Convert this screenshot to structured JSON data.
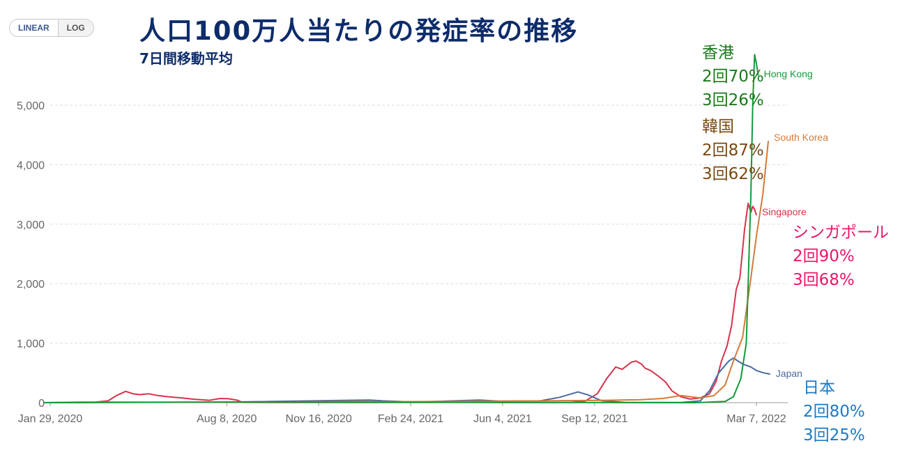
{
  "toggle": {
    "linear_label": "LINEAR",
    "log_label": "LOG",
    "active": "linear"
  },
  "header": {
    "title": "人口100万人当たりの発症率の推移",
    "subtitle": "7日間移動平均"
  },
  "annotations": {
    "hong_kong": {
      "name": "香港",
      "dose2": "2回70%",
      "dose3": "3回26%",
      "color": "#1a7a1a"
    },
    "south_korea": {
      "name": "韓国",
      "dose2": "2回87%",
      "dose3": "3回62%",
      "color": "#7a4a12"
    },
    "singapore": {
      "name": "シンガポール",
      "dose2": "2回90%",
      "dose3": "3回68%",
      "color": "#e8176b"
    },
    "japan": {
      "name": "日本",
      "dose2": "2回80%",
      "dose3": "3回25%",
      "color": "#1a7ac8"
    }
  },
  "chart_data": {
    "type": "line",
    "ylim": [
      0,
      5000
    ],
    "y_ticks": [
      0,
      1000,
      2000,
      3000,
      4000,
      5000
    ],
    "y_tick_labels": [
      "0",
      "1,000",
      "2,000",
      "3,000",
      "4,000",
      "5,000"
    ],
    "x_range": [
      "2020-01-22",
      "2022-03-30"
    ],
    "x_ticks": [
      "2020-01-29",
      "2020-08-08",
      "2020-11-16",
      "2021-02-24",
      "2021-06-04",
      "2021-09-12",
      "2022-03-07"
    ],
    "x_tick_labels": [
      "Jan 29, 2020",
      "Aug 8, 2020",
      "Nov 16, 2020",
      "Feb 24, 2021",
      "Jun 4, 2021",
      "Sep 12, 2021",
      "Mar 7, 2022"
    ],
    "grid": true,
    "series": [
      {
        "name": "Singapore",
        "color": "#d6334a",
        "points": [
          [
            "2020-01-22",
            0
          ],
          [
            "2020-03-15",
            5
          ],
          [
            "2020-04-01",
            30
          ],
          [
            "2020-04-10",
            120
          ],
          [
            "2020-04-20",
            190
          ],
          [
            "2020-04-28",
            150
          ],
          [
            "2020-05-05",
            135
          ],
          [
            "2020-05-15",
            150
          ],
          [
            "2020-05-25",
            120
          ],
          [
            "2020-06-05",
            100
          ],
          [
            "2020-06-20",
            80
          ],
          [
            "2020-07-05",
            55
          ],
          [
            "2020-07-20",
            40
          ],
          [
            "2020-08-01",
            70
          ],
          [
            "2020-08-10",
            65
          ],
          [
            "2020-08-20",
            40
          ],
          [
            "2020-08-25",
            5
          ],
          [
            "2020-09-15",
            2
          ],
          [
            "2021-01-01",
            2
          ],
          [
            "2021-05-01",
            5
          ],
          [
            "2021-06-01",
            3
          ],
          [
            "2021-08-15",
            3
          ],
          [
            "2021-09-01",
            20
          ],
          [
            "2021-09-15",
            150
          ],
          [
            "2021-09-25",
            400
          ],
          [
            "2021-10-05",
            600
          ],
          [
            "2021-10-12",
            560
          ],
          [
            "2021-10-22",
            680
          ],
          [
            "2021-10-27",
            700
          ],
          [
            "2021-11-02",
            650
          ],
          [
            "2021-11-06",
            580
          ],
          [
            "2021-11-12",
            540
          ],
          [
            "2021-11-20",
            450
          ],
          [
            "2021-11-28",
            350
          ],
          [
            "2021-12-05",
            200
          ],
          [
            "2021-12-15",
            100
          ],
          [
            "2021-12-25",
            60
          ],
          [
            "2022-01-05",
            80
          ],
          [
            "2022-01-15",
            150
          ],
          [
            "2022-01-22",
            350
          ],
          [
            "2022-01-28",
            700
          ],
          [
            "2022-02-03",
            950
          ],
          [
            "2022-02-08",
            1300
          ],
          [
            "2022-02-13",
            1900
          ],
          [
            "2022-02-17",
            2100
          ],
          [
            "2022-02-22",
            2900
          ],
          [
            "2022-02-26",
            3350
          ],
          [
            "2022-03-01",
            3200
          ],
          [
            "2022-03-03",
            3300
          ],
          [
            "2022-03-05",
            3250
          ],
          [
            "2022-03-07",
            3150
          ]
        ]
      },
      {
        "name": "Japan",
        "color": "#4c6a9c",
        "points": [
          [
            "2020-01-22",
            0
          ],
          [
            "2020-04-15",
            5
          ],
          [
            "2020-08-01",
            8
          ],
          [
            "2021-01-10",
            45
          ],
          [
            "2021-01-25",
            30
          ],
          [
            "2021-03-01",
            10
          ],
          [
            "2021-05-10",
            45
          ],
          [
            "2021-06-01",
            25
          ],
          [
            "2021-07-15",
            30
          ],
          [
            "2021-08-05",
            90
          ],
          [
            "2021-08-25",
            180
          ],
          [
            "2021-09-05",
            130
          ],
          [
            "2021-09-20",
            30
          ],
          [
            "2021-10-15",
            5
          ],
          [
            "2021-12-15",
            3
          ],
          [
            "2022-01-05",
            30
          ],
          [
            "2022-01-15",
            200
          ],
          [
            "2022-01-25",
            500
          ],
          [
            "2022-02-05",
            700
          ],
          [
            "2022-02-10",
            750
          ],
          [
            "2022-02-20",
            650
          ],
          [
            "2022-03-01",
            600
          ],
          [
            "2022-03-07",
            540
          ],
          [
            "2022-03-15",
            500
          ],
          [
            "2022-03-22",
            480
          ]
        ]
      },
      {
        "name": "South Korea",
        "color": "#d27a38",
        "points": [
          [
            "2020-01-22",
            0
          ],
          [
            "2020-03-01",
            10
          ],
          [
            "2020-09-01",
            5
          ],
          [
            "2020-12-25",
            20
          ],
          [
            "2021-01-20",
            15
          ],
          [
            "2021-07-20",
            30
          ],
          [
            "2021-09-25",
            40
          ],
          [
            "2021-11-01",
            50
          ],
          [
            "2021-11-25",
            70
          ],
          [
            "2021-12-15",
            120
          ],
          [
            "2022-01-05",
            80
          ],
          [
            "2022-01-20",
            120
          ],
          [
            "2022-02-01",
            300
          ],
          [
            "2022-02-10",
            700
          ],
          [
            "2022-02-20",
            1100
          ],
          [
            "2022-03-01",
            2100
          ],
          [
            "2022-03-07",
            2800
          ],
          [
            "2022-03-14",
            3500
          ],
          [
            "2022-03-20",
            4400
          ]
        ]
      },
      {
        "name": "Hong Kong",
        "color": "#149a3a",
        "points": [
          [
            "2020-01-22",
            0
          ],
          [
            "2020-08-01",
            10
          ],
          [
            "2021-12-31",
            0
          ],
          [
            "2022-02-01",
            20
          ],
          [
            "2022-02-10",
            100
          ],
          [
            "2022-02-18",
            400
          ],
          [
            "2022-02-24",
            1000
          ],
          [
            "2022-03-01",
            3500
          ],
          [
            "2022-03-03",
            5000
          ],
          [
            "2022-03-05",
            5850
          ],
          [
            "2022-03-07",
            5700
          ],
          [
            "2022-03-09",
            5500
          ]
        ]
      }
    ]
  }
}
